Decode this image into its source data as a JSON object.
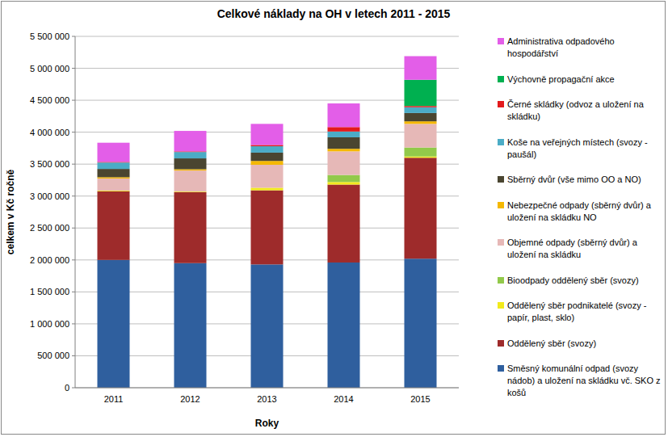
{
  "chart_data": {
    "type": "bar",
    "stacked": true,
    "grid": true,
    "legend": "right",
    "title": "Celkové náklady na OH v letech 2011 - 2015",
    "x_label": "Roky",
    "y_label": "celkem v Kč ročně",
    "categories": [
      "2011",
      "2012",
      "2013",
      "2014",
      "2015"
    ],
    "ylim": [
      0,
      5500000
    ],
    "yticks": [
      0,
      {
        "value": 500000,
        "label": "500 000"
      },
      {
        "value": 1000000,
        "label": "1 000 000"
      },
      {
        "value": 1500000,
        "label": "1 500 000"
      },
      {
        "value": 2000000,
        "label": "2 000 000"
      },
      {
        "value": 2500000,
        "label": "2 500 000"
      },
      {
        "value": 3000000,
        "label": "3 000 000"
      },
      {
        "value": 3500000,
        "label": "3 500 000"
      },
      {
        "value": 4000000,
        "label": "4 000 000"
      },
      {
        "value": 4500000,
        "label": "4 500 000"
      },
      {
        "value": 5000000,
        "label": "5 000 000"
      },
      {
        "value": 5500000,
        "label": "5 500 000"
      }
    ],
    "series": [
      {
        "name": "Směsný komunální odpad (svozy nádob) a uložení na skládku vč. SKO z košů",
        "color": "#2f5f9e",
        "values": [
          2000000,
          1950000,
          1930000,
          1960000,
          2020000
        ]
      },
      {
        "name": "Oddělený sběr (svozy)",
        "color": "#9e2b2b",
        "values": [
          1075000,
          1110000,
          1160000,
          1220000,
          1580000
        ]
      },
      {
        "name": "Oddělený sběr podnikatelé (svozy - papír, plast, sklo)",
        "color": "#f2ea1c",
        "values": [
          10000,
          10000,
          40000,
          40000,
          20000
        ]
      },
      {
        "name": "Bioodpady oddělený sběr (svozy)",
        "color": "#92c94a",
        "values": [
          0,
          0,
          0,
          110000,
          140000
        ]
      },
      {
        "name": "Objemné odpady (sběrný dvůr) a uložení na skládku",
        "color": "#e6b8b7",
        "values": [
          190000,
          330000,
          360000,
          370000,
          370000
        ]
      },
      {
        "name": "Nebezpečné odpady (sběrný dvůr) a uložení na skládku  NO",
        "color": "#f5b800",
        "values": [
          20000,
          20000,
          60000,
          40000,
          40000
        ]
      },
      {
        "name": "Sběrný dvůr (vše mimo OO a NO)",
        "color": "#4a4530",
        "values": [
          130000,
          170000,
          130000,
          180000,
          130000
        ]
      },
      {
        "name": "Koše na veřejných místech (svozy - paušál)",
        "color": "#4bacc6",
        "values": [
          100000,
          100000,
          100000,
          90000,
          90000
        ]
      },
      {
        "name": "Černé skládky (odvoz a uložení na skládku)",
        "color": "#e31a1c",
        "values": [
          10000,
          10000,
          20000,
          70000,
          20000
        ]
      },
      {
        "name": "Výchovně propagační akce",
        "color": "#00b050",
        "values": [
          0,
          0,
          0,
          0,
          410000
        ]
      },
      {
        "name": "Administrativa odpadového hospodářství",
        "color": "#e35ee8",
        "values": [
          300000,
          320000,
          330000,
          370000,
          370000
        ]
      }
    ]
  }
}
